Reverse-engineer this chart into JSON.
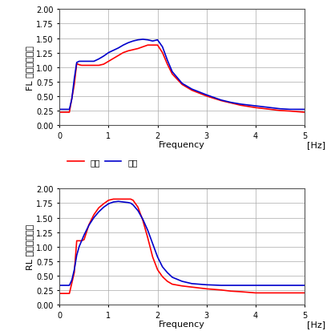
{
  "top_ylabel": "FL バネ上加速度",
  "bot_ylabel": "RL バネ上加速度",
  "xlabel": "Frequency",
  "xlabel_unit": "[Hz]",
  "legend_exp": "実験",
  "legend_ana": "解析",
  "color_exp": "#ff0000",
  "color_ana": "#0000cc",
  "ylim": [
    0.0,
    2.0
  ],
  "xlim": [
    0,
    5
  ],
  "yticks": [
    0.0,
    0.25,
    0.5,
    0.75,
    1.0,
    1.25,
    1.5,
    1.75,
    2.0
  ],
  "xticks": [
    0,
    1,
    2,
    3,
    4,
    5
  ],
  "top_exp_x": [
    0.0,
    0.1,
    0.2,
    0.3,
    0.35,
    0.4,
    0.45,
    0.5,
    0.6,
    0.7,
    0.8,
    0.9,
    1.0,
    1.1,
    1.2,
    1.3,
    1.4,
    1.5,
    1.6,
    1.7,
    1.8,
    1.9,
    2.0,
    2.1,
    2.2,
    2.3,
    2.5,
    2.7,
    3.0,
    3.3,
    3.5,
    3.7,
    4.0,
    4.3,
    4.5,
    4.7,
    5.0
  ],
  "top_exp_y": [
    0.22,
    0.22,
    0.22,
    0.7,
    1.06,
    1.04,
    1.03,
    1.03,
    1.03,
    1.03,
    1.03,
    1.05,
    1.1,
    1.15,
    1.2,
    1.25,
    1.28,
    1.3,
    1.32,
    1.35,
    1.38,
    1.38,
    1.38,
    1.25,
    1.05,
    0.88,
    0.7,
    0.6,
    0.5,
    0.42,
    0.38,
    0.34,
    0.3,
    0.27,
    0.25,
    0.24,
    0.22
  ],
  "top_ana_x": [
    0.0,
    0.1,
    0.2,
    0.25,
    0.3,
    0.35,
    0.4,
    0.45,
    0.5,
    0.6,
    0.7,
    0.8,
    0.9,
    1.0,
    1.1,
    1.2,
    1.3,
    1.4,
    1.5,
    1.6,
    1.7,
    1.8,
    1.9,
    2.0,
    2.1,
    2.2,
    2.3,
    2.5,
    2.7,
    3.0,
    3.3,
    3.5,
    3.7,
    4.0,
    4.3,
    4.5,
    4.7,
    5.0
  ],
  "top_ana_y": [
    0.27,
    0.27,
    0.27,
    0.45,
    0.8,
    1.08,
    1.1,
    1.1,
    1.1,
    1.1,
    1.1,
    1.14,
    1.19,
    1.25,
    1.29,
    1.33,
    1.38,
    1.42,
    1.45,
    1.47,
    1.48,
    1.47,
    1.45,
    1.47,
    1.35,
    1.12,
    0.92,
    0.72,
    0.62,
    0.52,
    0.43,
    0.39,
    0.36,
    0.33,
    0.3,
    0.28,
    0.27,
    0.27
  ],
  "bot_exp_x": [
    0.0,
    0.1,
    0.2,
    0.3,
    0.35,
    0.4,
    0.45,
    0.5,
    0.6,
    0.7,
    0.8,
    0.9,
    1.0,
    1.1,
    1.2,
    1.3,
    1.4,
    1.45,
    1.5,
    1.6,
    1.7,
    1.8,
    1.9,
    2.0,
    2.1,
    2.2,
    2.3,
    2.5,
    2.7,
    3.0,
    3.3,
    3.5,
    3.7,
    4.0,
    4.3,
    4.5,
    4.7,
    5.0
  ],
  "bot_exp_y": [
    0.19,
    0.19,
    0.19,
    0.55,
    1.1,
    1.1,
    1.1,
    1.12,
    1.38,
    1.55,
    1.67,
    1.74,
    1.8,
    1.82,
    1.82,
    1.82,
    1.82,
    1.82,
    1.8,
    1.68,
    1.45,
    1.15,
    0.82,
    0.6,
    0.48,
    0.4,
    0.35,
    0.32,
    0.3,
    0.27,
    0.25,
    0.23,
    0.22,
    0.2,
    0.2,
    0.2,
    0.2,
    0.2
  ],
  "bot_ana_x": [
    0.0,
    0.1,
    0.2,
    0.25,
    0.3,
    0.35,
    0.4,
    0.45,
    0.5,
    0.6,
    0.7,
    0.8,
    0.9,
    1.0,
    1.1,
    1.2,
    1.3,
    1.4,
    1.45,
    1.5,
    1.6,
    1.7,
    1.8,
    1.9,
    2.0,
    2.1,
    2.2,
    2.3,
    2.5,
    2.7,
    3.0,
    3.3,
    3.5,
    3.7,
    4.0,
    4.3,
    4.5,
    4.7,
    5.0
  ],
  "bot_ana_y": [
    0.33,
    0.33,
    0.33,
    0.42,
    0.6,
    0.85,
    1.0,
    1.1,
    1.2,
    1.37,
    1.5,
    1.6,
    1.68,
    1.74,
    1.77,
    1.78,
    1.77,
    1.76,
    1.75,
    1.72,
    1.62,
    1.47,
    1.28,
    1.05,
    0.82,
    0.65,
    0.55,
    0.47,
    0.4,
    0.36,
    0.34,
    0.33,
    0.33,
    0.33,
    0.33,
    0.33,
    0.33,
    0.33,
    0.33
  ],
  "line_width": 1.2,
  "background_color": "#ffffff",
  "grid_color": "#aaaaaa",
  "tick_fontsize": 7,
  "label_fontsize": 8,
  "legend_fontsize": 7.5
}
